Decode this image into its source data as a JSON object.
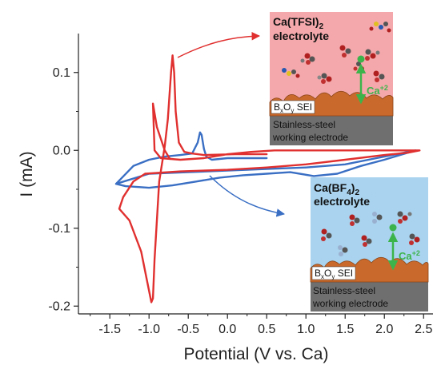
{
  "chart_data": {
    "type": "line",
    "xlabel": "Potential (V vs. Ca)",
    "ylabel": "I (mA)",
    "xlim": [
      -1.9,
      2.62
    ],
    "ylim": [
      -0.21,
      0.15
    ],
    "x_ticks": [
      -1.5,
      -1.0,
      -0.5,
      0.0,
      0.5,
      1.0,
      1.5,
      2.0,
      2.5
    ],
    "x_tick_labels": [
      "-1.5",
      "-1.0",
      "-0.5",
      "0.0",
      "0.5",
      "1.0",
      "1.5",
      "2.0",
      "2.5"
    ],
    "y_ticks": [
      -0.2,
      -0.1,
      0.0,
      0.1
    ],
    "y_tick_labels": [
      "-0.2",
      "-0.1",
      "0.0",
      "0.1"
    ],
    "grid": false,
    "series": [
      {
        "color": "#e0302f",
        "x": [
          0.5,
          0.1,
          -0.3,
          -0.45,
          -0.55,
          -0.62,
          -0.66,
          -0.68,
          -0.7,
          -0.72,
          -0.76,
          -0.8,
          -0.87,
          -0.93,
          -0.95,
          -0.97,
          -1.02,
          -1.1,
          -1.25,
          -1.38,
          -1.33,
          -1.2,
          -1.05,
          -0.6,
          0.0,
          0.5,
          1.0,
          1.5,
          2.0,
          2.3,
          2.45,
          2.3,
          2.0,
          1.5,
          1.0,
          0.6,
          0.3,
          0.0,
          -0.3,
          -0.6,
          -0.85,
          -0.93,
          -0.95,
          -0.9,
          -0.8,
          -0.74
        ],
        "y": [
          -0.005,
          -0.005,
          -0.006,
          -0.004,
          -0.002,
          0.01,
          0.05,
          0.1,
          0.122,
          0.1,
          0.04,
          0.005,
          -0.04,
          -0.14,
          -0.19,
          -0.195,
          -0.17,
          -0.13,
          -0.09,
          -0.075,
          -0.06,
          -0.04,
          -0.03,
          -0.027,
          -0.025,
          -0.022,
          -0.018,
          -0.012,
          -0.006,
          -0.003,
          0.0,
          0.0,
          0.0,
          0.0,
          0.0,
          0.0,
          -0.002,
          -0.005,
          -0.01,
          -0.012,
          -0.01,
          0.0,
          0.06,
          0.03,
          0.0,
          -0.01
        ]
      },
      {
        "color": "#3a6fc4",
        "x": [
          0.5,
          0.0,
          -0.2,
          -0.27,
          -0.3,
          -0.33,
          -0.35,
          -0.38,
          -0.45,
          -0.6,
          -0.8,
          -1.0,
          -1.2,
          -1.42,
          -1.3,
          -1.0,
          -0.7,
          -0.4,
          -0.1,
          0.2,
          0.5,
          0.8,
          1.1,
          1.4,
          1.7,
          2.0,
          2.2,
          2.4,
          2.2,
          1.9,
          1.5,
          1.0,
          0.5,
          0.0,
          -0.5,
          -1.0,
          -1.42
        ],
        "y": [
          -0.01,
          -0.01,
          -0.012,
          -0.008,
          0.002,
          0.02,
          0.023,
          0.01,
          -0.004,
          -0.006,
          -0.008,
          -0.012,
          -0.02,
          -0.043,
          -0.046,
          -0.048,
          -0.045,
          -0.04,
          -0.035,
          -0.032,
          -0.03,
          -0.028,
          -0.033,
          -0.03,
          -0.02,
          -0.012,
          -0.006,
          0.0,
          -0.004,
          -0.01,
          -0.018,
          -0.022,
          -0.024,
          -0.026,
          -0.028,
          -0.03,
          -0.043
        ]
      }
    ]
  },
  "insets": {
    "tfsi": {
      "title_line1": "Ca(TFSI)",
      "title_sub": "2",
      "title_line2": "electrolyte",
      "ion": "Ca",
      "ion_charge": "+2",
      "sei_b": "B",
      "sei_x": "x",
      "sei_o": "O",
      "sei_y": "y",
      "sei_text": " SEI",
      "electrode_line1": "Stainless-steel",
      "electrode_line2": "working electrode",
      "bg_color": "#f4a8ab"
    },
    "bf4": {
      "title_line1": "Ca(BF",
      "title_sub": "4",
      "title_close": ")",
      "title_sub2": "2",
      "title_line2": "electrolyte",
      "ion": "Ca",
      "ion_charge": "+2",
      "sei_b": "B",
      "sei_x": "x",
      "sei_o": "O",
      "sei_y": "y",
      "sei_text": " SEI",
      "electrode_line1": "Stainless-steel",
      "electrode_line2": "working electrode",
      "bg_color": "#a9d3ee"
    }
  },
  "colors": {
    "red": "#e0302f",
    "blue": "#3a6fc4",
    "ion_green": "#3cb44b",
    "sei_brown": "#c96a2c",
    "electrode_gray": "#6f6f6f"
  }
}
